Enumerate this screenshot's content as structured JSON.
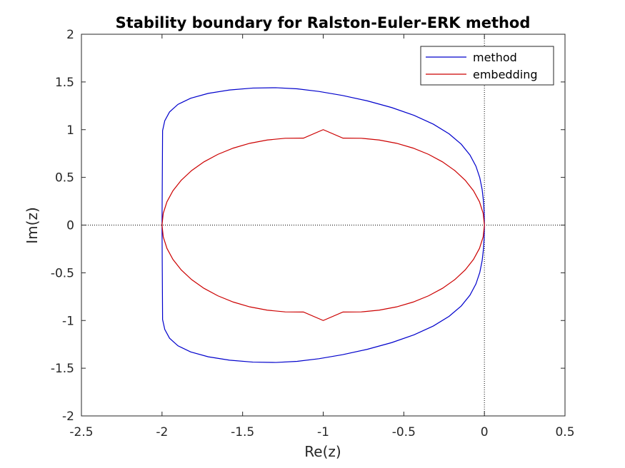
{
  "chart_data": {
    "type": "line",
    "title": "Stability boundary for Ralston-Euler-ERK method",
    "xlabel": "Re(z)",
    "ylabel": "Im(z)",
    "xlim": [
      -2.5,
      0.5
    ],
    "ylim": [
      -2,
      2
    ],
    "xticks": [
      -2.5,
      -2,
      -1.5,
      -1,
      -0.5,
      0,
      0.5
    ],
    "yticks": [
      -2,
      -1.5,
      -1,
      -0.5,
      0,
      0.5,
      1,
      1.5,
      2
    ],
    "xtick_labels": [
      "-2.5",
      "-2",
      "-1.5",
      "-1",
      "-0.5",
      "0",
      "0.5"
    ],
    "ytick_labels": [
      "-2",
      "-1.5",
      "-1",
      "-0.5",
      "0",
      "0.5",
      "1",
      "1.5",
      "2"
    ],
    "reference_lines": [
      {
        "orientation": "horizontal",
        "value": 0,
        "style": "dotted"
      },
      {
        "orientation": "vertical",
        "value": 0,
        "style": "dotted"
      }
    ],
    "legend_position": "top-right",
    "grid": false,
    "series": [
      {
        "name": "method",
        "color": "#0000cc",
        "x": [
          0,
          -0.0014,
          -0.0058,
          -0.0141,
          -0.0287,
          -0.0526,
          -0.0897,
          -0.1439,
          -0.2189,
          -0.3166,
          -0.4366,
          -0.5754,
          -0.7265,
          -0.8806,
          -1.0267,
          -1.1616,
          -1.2939,
          -1.4364,
          -1.5808,
          -1.7131,
          -1.8221,
          -1.9014,
          -1.9533,
          -1.9829,
          -1.9965,
          -2,
          -1.9965,
          -1.9829,
          -1.9533,
          -1.9014,
          -1.8221,
          -1.7131,
          -1.5808,
          -1.4364,
          -1.2939,
          -1.1616,
          -1.0267,
          -0.8806,
          -0.7265,
          -0.5754,
          -0.4366,
          -0.3166,
          -0.2189,
          -0.1439,
          -0.0897,
          -0.0526,
          -0.0287,
          -0.0141,
          -0.0058,
          -0.0014,
          0
        ],
        "y": [
          0,
          0.1254,
          0.2503,
          0.3741,
          0.4967,
          0.6171,
          0.7346,
          0.8481,
          0.9562,
          1.0574,
          1.1498,
          1.2318,
          1.3018,
          1.3584,
          1.4007,
          1.428,
          1.4398,
          1.4358,
          1.4159,
          1.3804,
          1.3297,
          1.2646,
          1.1856,
          1.0937,
          0.9901,
          0,
          -0.9901,
          -1.0937,
          -1.1856,
          -1.2646,
          -1.3297,
          -1.3804,
          -1.4159,
          -1.4358,
          -1.4398,
          -1.428,
          -1.4007,
          -1.3584,
          -1.3018,
          -1.2318,
          -1.1498,
          -1.0574,
          -0.9562,
          -0.8481,
          -0.7346,
          -0.6171,
          -0.4967,
          -0.3741,
          -0.2503,
          -0.1254,
          0
        ]
      },
      {
        "name": "embedding",
        "color": "#cc0000",
        "x": [
          0,
          -0.0076,
          -0.0304,
          -0.0678,
          -0.1191,
          -0.1835,
          -0.2597,
          -0.3464,
          -0.4419,
          -0.5446,
          -0.6527,
          -0.7643,
          -0.8774,
          -1,
          -1.1226,
          -1.2357,
          -1.3473,
          -1.4554,
          -1.5581,
          -1.6536,
          -1.7403,
          -1.8165,
          -1.8809,
          -1.9322,
          -1.9696,
          -1.9924,
          -2,
          -1.9924,
          -1.9696,
          -1.9322,
          -1.8809,
          -1.8165,
          -1.7403,
          -1.6536,
          -1.5581,
          -1.4554,
          -1.3473,
          -1.2357,
          -1.1226,
          -1,
          -0.8774,
          -0.7643,
          -0.6527,
          -0.5446,
          -0.4419,
          -0.3464,
          -0.2597,
          -0.1835,
          -0.1191,
          -0.0678,
          -0.0304,
          -0.0076,
          0
        ],
        "y": [
          0,
          0.1229,
          0.2436,
          0.3599,
          0.4698,
          0.5712,
          0.6623,
          0.7412,
          0.8066,
          0.8571,
          0.8917,
          0.9098,
          0.9111,
          1,
          0.9111,
          0.9098,
          0.8917,
          0.8571,
          0.8066,
          0.7412,
          0.6623,
          0.5712,
          0.4698,
          0.3599,
          0.2436,
          0.1229,
          0,
          -0.1229,
          -0.2436,
          -0.3599,
          -0.4698,
          -0.5712,
          -0.6623,
          -0.7412,
          -0.8066,
          -0.8571,
          -0.8917,
          -0.9098,
          -0.9111,
          -1,
          -0.9111,
          -0.9098,
          -0.8917,
          -0.8571,
          -0.8066,
          -0.7412,
          -0.6623,
          -0.5712,
          -0.4698,
          -0.3599,
          -0.2436,
          -0.1229,
          0
        ]
      }
    ]
  }
}
